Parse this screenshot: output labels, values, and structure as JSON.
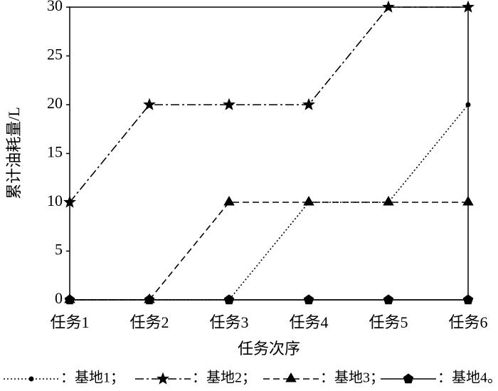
{
  "chart_data": {
    "type": "line",
    "ylabel": "累计油耗量/L",
    "xlabel": "任务次序",
    "categories": [
      "任务1",
      "任务2",
      "任务3",
      "任务4",
      "任务5",
      "任务6"
    ],
    "series": [
      {
        "name": "：基地1；",
        "color": "#000000",
        "linestyle": "dotted",
        "marker": "circle",
        "values": [
          0,
          0,
          0,
          10,
          10,
          20
        ]
      },
      {
        "name": "：基地2；",
        "color": "#000000",
        "linestyle": "dashdot",
        "marker": "star",
        "values": [
          10,
          20,
          20,
          20,
          30,
          30
        ]
      },
      {
        "name": "：基地3；",
        "color": "#000000",
        "linestyle": "dashed",
        "marker": "triangle",
        "values": [
          0,
          0,
          10,
          10,
          10,
          10
        ]
      },
      {
        "name": "：基地4。",
        "color": "#000000",
        "linestyle": "solid",
        "marker": "pentagon",
        "values": [
          0,
          0,
          0,
          0,
          0,
          0
        ]
      }
    ],
    "ylim": [
      0,
      30
    ],
    "yticks": [
      0,
      5,
      10,
      15,
      20,
      25,
      30
    ],
    "grid": false,
    "legend": "bottom"
  }
}
